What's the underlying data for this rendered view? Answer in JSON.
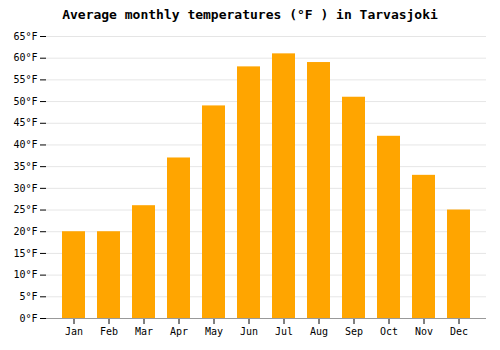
{
  "chart_data": {
    "type": "bar",
    "title": "Average monthly temperatures (°F ) in Tarvasjoki",
    "categories": [
      "Jan",
      "Feb",
      "Mar",
      "Apr",
      "May",
      "Jun",
      "Jul",
      "Aug",
      "Sep",
      "Oct",
      "Nov",
      "Dec"
    ],
    "values": [
      20,
      20,
      26,
      37,
      49,
      58,
      61,
      59,
      51,
      42,
      33,
      25
    ],
    "color": "#FFA500",
    "ylim": [
      0,
      65
    ],
    "yticks": [
      {
        "value": 0,
        "label": "0°F"
      },
      {
        "value": 5,
        "label": "5°F"
      },
      {
        "value": 10,
        "label": "10°F"
      },
      {
        "value": 15,
        "label": "15°F"
      },
      {
        "value": 20,
        "label": "20°F"
      },
      {
        "value": 25,
        "label": "25°F"
      },
      {
        "value": 30,
        "label": "30°F"
      },
      {
        "value": 35,
        "label": "35°F"
      },
      {
        "value": 40,
        "label": "40°F"
      },
      {
        "value": 45,
        "label": "45°F"
      },
      {
        "value": 50,
        "label": "50°F"
      },
      {
        "value": 55,
        "label": "55°F"
      },
      {
        "value": 60,
        "label": "60°F"
      },
      {
        "value": 65,
        "label": "65°F"
      }
    ],
    "grid": true
  }
}
